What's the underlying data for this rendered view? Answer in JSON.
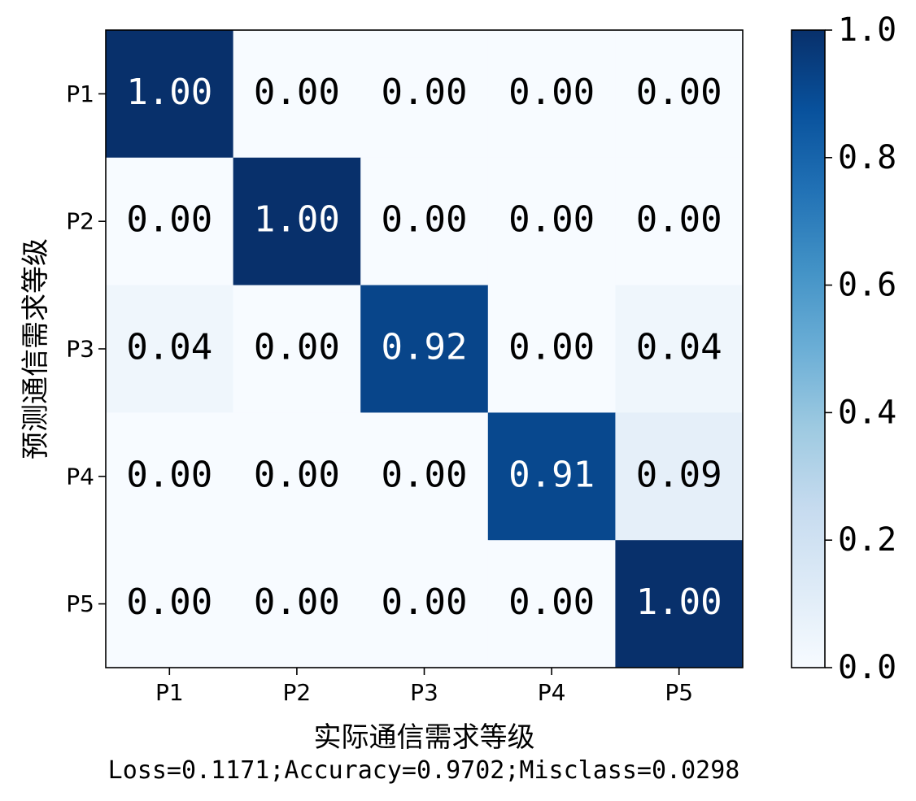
{
  "chart_data": {
    "type": "heatmap",
    "title": "",
    "xlabel": "实际通信需求等级",
    "ylabel": "预测通信需求等级",
    "x_categories": [
      "P1",
      "P2",
      "P3",
      "P4",
      "P5"
    ],
    "y_categories": [
      "P1",
      "P2",
      "P3",
      "P4",
      "P5"
    ],
    "values": [
      [
        1.0,
        0.0,
        0.0,
        0.0,
        0.0
      ],
      [
        0.0,
        1.0,
        0.0,
        0.0,
        0.0
      ],
      [
        0.04,
        0.0,
        0.92,
        0.0,
        0.04
      ],
      [
        0.0,
        0.0,
        0.0,
        0.91,
        0.09
      ],
      [
        0.0,
        0.0,
        0.0,
        0.0,
        1.0
      ]
    ],
    "value_format": "2 decimals",
    "colormap": "Blues",
    "colorbar": {
      "range": [
        0.0,
        1.0
      ],
      "ticks": [
        "0.0",
        "0.2",
        "0.4",
        "0.6",
        "0.8",
        "1.0"
      ],
      "placement": "right"
    },
    "footer": "Loss=0.1171;Accuracy=0.9702;Misclass=0.0298"
  }
}
